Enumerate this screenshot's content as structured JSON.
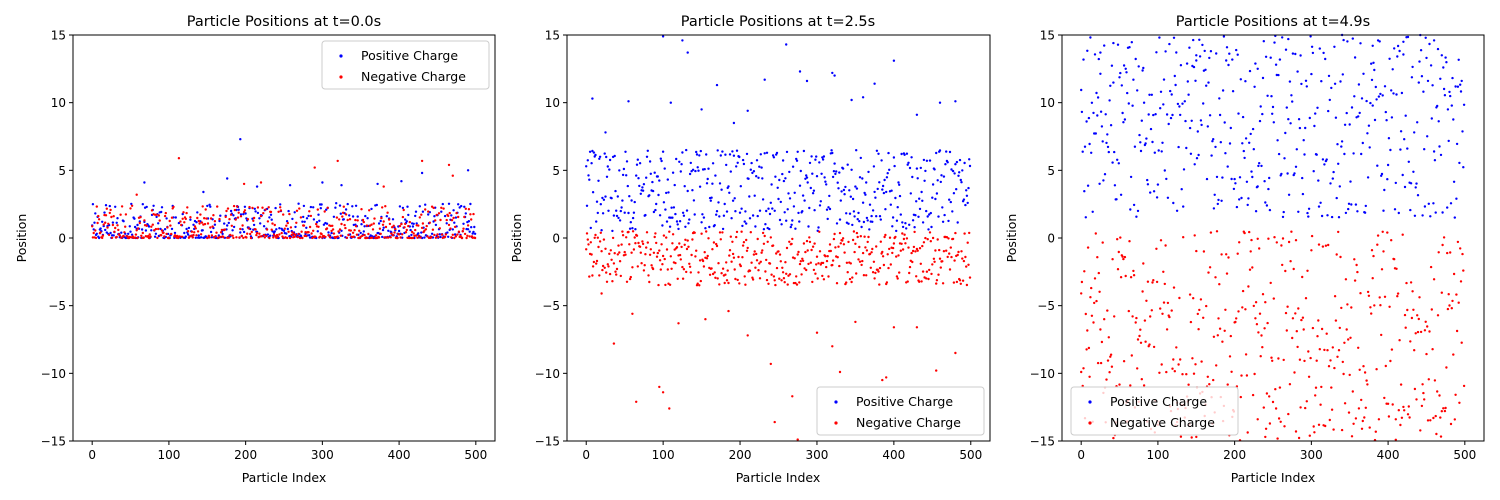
{
  "colors": {
    "positive": "#0000ff",
    "negative": "#ff0000"
  },
  "chart_data": [
    {
      "type": "scatter",
      "title": "Particle Positions at t=0.0s",
      "xlabel": "Particle Index",
      "ylabel": "Position",
      "xlim": [
        -25,
        525
      ],
      "ylim": [
        -15,
        15
      ],
      "xticks": [
        0,
        100,
        200,
        300,
        400,
        500
      ],
      "yticks": [
        -15,
        -10,
        -5,
        0,
        5,
        10,
        15
      ],
      "legend_position": "top-right",
      "series": [
        {
          "name": "Positive Charge",
          "color": "#0000ff",
          "band": [
            0,
            2.6
          ],
          "outliers": [
            [
              68,
              4.1
            ],
            [
              193,
              7.3
            ],
            [
              176,
              4.4
            ],
            [
              258,
              3.9
            ],
            [
              300,
              4.1
            ],
            [
              325,
              3.9
            ],
            [
              372,
              4.0
            ],
            [
              403,
              4.2
            ],
            [
              430,
              4.8
            ],
            [
              490,
              5.0
            ],
            [
              145,
              3.4
            ],
            [
              215,
              3.8
            ]
          ]
        },
        {
          "name": "Negative Charge",
          "color": "#ff0000",
          "band": [
            0,
            2.4
          ],
          "outliers": [
            [
              113,
              5.9
            ],
            [
              290,
              5.2
            ],
            [
              320,
              5.7
            ],
            [
              430,
              5.7
            ],
            [
              465,
              5.4
            ],
            [
              198,
              4.0
            ],
            [
              220,
              4.1
            ],
            [
              470,
              4.6
            ],
            [
              380,
              3.8
            ],
            [
              58,
              3.2
            ]
          ]
        }
      ]
    },
    {
      "type": "scatter",
      "title": "Particle Positions at t=2.5s",
      "xlabel": "Particle Index",
      "ylabel": "Position",
      "xlim": [
        -25,
        525
      ],
      "ylim": [
        -15,
        15
      ],
      "xticks": [
        0,
        100,
        200,
        300,
        400,
        500
      ],
      "yticks": [
        -15,
        -10,
        -5,
        0,
        5,
        10,
        15
      ],
      "legend_position": "lower-right",
      "series": [
        {
          "name": "Positive Charge",
          "color": "#0000ff",
          "band": [
            0.5,
            6.5
          ],
          "outliers": [
            [
              8,
              10.3
            ],
            [
              100,
              14.9
            ],
            [
              125,
              14.6
            ],
            [
              132,
              13.7
            ],
            [
              110,
              10.0
            ],
            [
              260,
              14.3
            ],
            [
              278,
              12.3
            ],
            [
              320,
              12.2
            ],
            [
              323,
              12.0
            ],
            [
              345,
              10.2
            ],
            [
              375,
              11.4
            ],
            [
              400,
              13.1
            ],
            [
              232,
              11.7
            ],
            [
              210,
              9.4
            ],
            [
              430,
              9.1
            ],
            [
              460,
              10.0
            ],
            [
              480,
              10.1
            ],
            [
              170,
              11.3
            ],
            [
              55,
              10.1
            ],
            [
              150,
              9.5
            ],
            [
              192,
              8.5
            ],
            [
              287,
              11.6
            ],
            [
              360,
              10.4
            ],
            [
              25,
              7.8
            ]
          ]
        },
        {
          "name": "Negative Charge",
          "color": "#ff0000",
          "band": [
            -3.5,
            0.5
          ],
          "outliers": [
            [
              65,
              -12.1
            ],
            [
              95,
              -11.0
            ],
            [
              100,
              -11.4
            ],
            [
              108,
              -12.6
            ],
            [
              36,
              -7.8
            ],
            [
              245,
              -13.6
            ],
            [
              275,
              -14.9
            ],
            [
              268,
              -11.7
            ],
            [
              385,
              -10.5
            ],
            [
              390,
              -10.3
            ],
            [
              480,
              -8.5
            ],
            [
              320,
              -8.0
            ],
            [
              350,
              -6.2
            ],
            [
              400,
              -6.6
            ],
            [
              430,
              -6.6
            ],
            [
              455,
              -9.8
            ],
            [
              210,
              -7.2
            ],
            [
              155,
              -6.0
            ],
            [
              60,
              -5.6
            ],
            [
              240,
              -9.3
            ],
            [
              330,
              -9.9
            ],
            [
              185,
              -5.4
            ],
            [
              300,
              -7.0
            ],
            [
              120,
              -6.3
            ],
            [
              20,
              -4.1
            ]
          ]
        }
      ]
    },
    {
      "type": "scatter",
      "title": "Particle Positions at t=4.9s",
      "xlabel": "Particle Index",
      "ylabel": "Position",
      "xlim": [
        -25,
        525
      ],
      "ylim": [
        -15,
        15
      ],
      "xticks": [
        0,
        100,
        200,
        300,
        400,
        500
      ],
      "yticks": [
        -15,
        -10,
        -5,
        0,
        5,
        10,
        15
      ],
      "legend_position": "lower-left",
      "series": [
        {
          "name": "Positive Charge",
          "color": "#0000ff",
          "band": [
            1.5,
            15
          ],
          "outliers": [
            [
              25,
              13.7
            ],
            [
              42,
              14.4
            ],
            [
              270,
              14.7
            ],
            [
              340,
              15.0
            ],
            [
              380,
              14.2
            ],
            [
              420,
              14.5
            ],
            [
              460,
              14.6
            ],
            [
              150,
              13.5
            ],
            [
              230,
              12.5
            ]
          ]
        },
        {
          "name": "Negative Charge",
          "color": "#ff0000",
          "band": [
            -15,
            0.5
          ],
          "outliers": [
            [
              0,
              -9.9
            ],
            [
              125,
              -13.6
            ],
            [
              150,
              -14.7
            ],
            [
              280,
              -14.3
            ],
            [
              240,
              -14.7
            ],
            [
              310,
              -13.8
            ],
            [
              410,
              -13.4
            ],
            [
              230,
              -13.4
            ],
            [
              470,
              -12.8
            ]
          ]
        }
      ]
    }
  ]
}
